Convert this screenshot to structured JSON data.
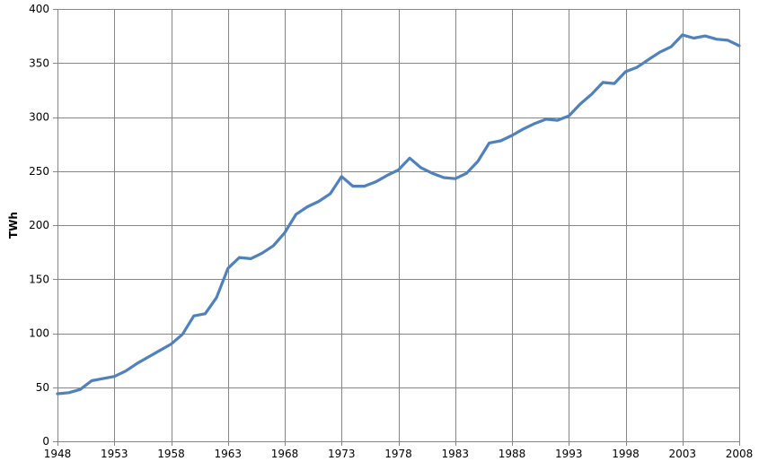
{
  "chart": {
    "background_color": "#FFFFFF"
  },
  "chart_data": {
    "type": "line",
    "title": "",
    "xlabel": "",
    "ylabel": "TWh",
    "legend": null,
    "grid": true,
    "ylim": [
      0,
      400
    ],
    "y_ticks": [
      0,
      50,
      100,
      150,
      200,
      250,
      300,
      350,
      400
    ],
    "x_ticks": [
      1948,
      1953,
      1958,
      1963,
      1968,
      1973,
      1978,
      1983,
      1988,
      1993,
      1998,
      2003,
      2008
    ],
    "line_color": "#4F81BD",
    "grid_color": "#868686",
    "text_color": "#000000",
    "x": [
      1948,
      1949,
      1950,
      1951,
      1952,
      1953,
      1954,
      1955,
      1956,
      1957,
      1958,
      1959,
      1960,
      1961,
      1962,
      1963,
      1964,
      1965,
      1966,
      1967,
      1968,
      1969,
      1970,
      1971,
      1972,
      1973,
      1974,
      1975,
      1976,
      1977,
      1978,
      1979,
      1980,
      1981,
      1982,
      1983,
      1984,
      1985,
      1986,
      1987,
      1988,
      1989,
      1990,
      1991,
      1992,
      1993,
      1994,
      1995,
      1996,
      1997,
      1998,
      1999,
      2000,
      2001,
      2002,
      2003,
      2004,
      2005,
      2006,
      2007,
      2008
    ],
    "values": [
      44,
      45,
      48,
      56,
      58,
      60,
      65,
      72,
      78,
      84,
      90,
      99,
      116,
      118,
      133,
      160,
      170,
      169,
      174,
      181,
      193,
      210,
      217,
      222,
      229,
      245,
      236,
      236,
      240,
      246,
      251,
      262,
      253,
      248,
      244,
      243,
      248,
      259,
      276,
      278,
      283,
      289,
      294,
      298,
      297,
      301,
      312,
      321,
      332,
      331,
      342,
      346,
      353,
      360,
      365,
      376,
      373,
      375,
      372,
      371,
      366
    ]
  }
}
